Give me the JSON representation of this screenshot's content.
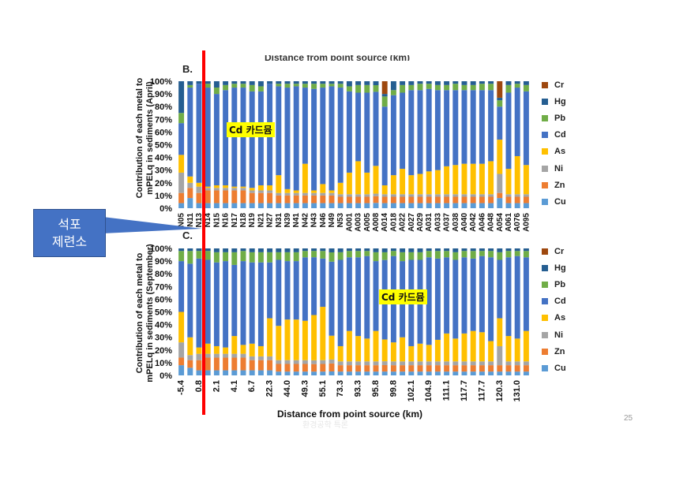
{
  "page_number": "25",
  "top_truncated_label": "Distance from point source (km)",
  "watermark_text": "환경공학 특론",
  "callout": {
    "line1": "석포",
    "line2": "제련소",
    "color": "#4472c4"
  },
  "annotation_color": "#ffff00",
  "line_color": "#ff0000",
  "chart_data": [
    {
      "type": "bar",
      "stacked": true,
      "panel": "B.",
      "ylabel_line1": "Contribution of each metal to",
      "ylabel_line2": "mPELq in sediments (April)",
      "yticks": [
        "0%",
        "10%",
        "20%",
        "30%",
        "40%",
        "50%",
        "60%",
        "70%",
        "80%",
        "90%",
        "100%"
      ],
      "ylim": [
        0,
        100
      ],
      "tick_labels": [
        "N05",
        "N11",
        "N13",
        "N14",
        "N15",
        "N16",
        "N17",
        "N18",
        "N19",
        "N21",
        "N27",
        "N31",
        "N39",
        "N41",
        "N42",
        "N43",
        "N46",
        "N49",
        "N53",
        "A001",
        "A003",
        "A005",
        "A008",
        "A014",
        "A018",
        "A022",
        "A027",
        "A029",
        "A031",
        "A033",
        "A037",
        "A038",
        "A040",
        "A042",
        "A046",
        "A048",
        "A054",
        "A061",
        "A076",
        "A095"
      ],
      "annotation": "Cd 카드뮴",
      "legend": [
        "Cr",
        "Hg",
        "Pb",
        "Cd",
        "As",
        "Ni",
        "Zn",
        "Cu"
      ],
      "colors": {
        "Cu": "#5b9bd5",
        "Zn": "#ed7d31",
        "Ni": "#a5a5a5",
        "As": "#ffc000",
        "Cd": "#4472c4",
        "Pb": "#70ad47",
        "Hg": "#255e91",
        "Cr": "#9e480e"
      },
      "n_bars": 40,
      "series": [
        {
          "name": "Cu",
          "values": [
            4,
            8,
            4,
            4,
            4,
            4,
            4,
            4,
            4,
            4,
            4,
            4,
            4,
            4,
            4,
            4,
            4,
            4,
            4,
            4,
            4,
            4,
            4,
            4,
            4,
            4,
            4,
            4,
            4,
            4,
            4,
            4,
            4,
            4,
            4,
            4,
            8,
            4,
            4,
            4
          ]
        },
        {
          "name": "Zn",
          "values": [
            8,
            8,
            8,
            10,
            10,
            10,
            10,
            10,
            8,
            8,
            8,
            6,
            6,
            6,
            6,
            6,
            6,
            6,
            5,
            5,
            5,
            5,
            5,
            5,
            5,
            5,
            5,
            5,
            5,
            5,
            5,
            5,
            5,
            5,
            5,
            5,
            4,
            5,
            5,
            5
          ]
        },
        {
          "name": "Ni",
          "values": [
            16,
            4,
            5,
            2,
            2,
            2,
            2,
            2,
            2,
            2,
            2,
            2,
            2,
            2,
            2,
            2,
            2,
            2,
            2,
            2,
            2,
            2,
            2,
            2,
            2,
            2,
            2,
            2,
            2,
            2,
            2,
            2,
            2,
            2,
            2,
            2,
            15,
            2,
            2,
            2
          ]
        },
        {
          "name": "As",
          "values": [
            14,
            5,
            3,
            1,
            2,
            2,
            1,
            1,
            2,
            4,
            4,
            14,
            3,
            2,
            23,
            2,
            7,
            2,
            9,
            17,
            26,
            17,
            21,
            7,
            15,
            20,
            15,
            16,
            18,
            19,
            22,
            23,
            24,
            24,
            24,
            26,
            27,
            20,
            30,
            23
          ]
        },
        {
          "name": "Cd",
          "values": [
            25,
            70,
            78,
            78,
            72,
            75,
            78,
            78,
            76,
            74,
            80,
            70,
            80,
            82,
            60,
            80,
            76,
            82,
            75,
            64,
            54,
            63,
            56,
            62,
            63,
            60,
            67,
            66,
            65,
            63,
            60,
            59,
            58,
            58,
            58,
            56,
            26,
            60,
            54,
            58
          ]
        },
        {
          "name": "Pb",
          "values": [
            8,
            2,
            0,
            3,
            5,
            4,
            3,
            3,
            5,
            4,
            0,
            2,
            3,
            2,
            3,
            4,
            3,
            2,
            3,
            4,
            6,
            6,
            5,
            8,
            4,
            6,
            4,
            5,
            4,
            4,
            4,
            5,
            4,
            4,
            5,
            5,
            5,
            6,
            3,
            5
          ]
        },
        {
          "name": "Hg",
          "values": [
            25,
            3,
            2,
            2,
            5,
            3,
            2,
            2,
            3,
            4,
            2,
            2,
            2,
            2,
            2,
            2,
            2,
            2,
            2,
            4,
            3,
            3,
            3,
            2,
            7,
            3,
            3,
            2,
            2,
            3,
            3,
            2,
            3,
            3,
            2,
            2,
            2,
            3,
            2,
            3
          ]
        },
        {
          "name": "Cr",
          "values": [
            0,
            0,
            0,
            0,
            0,
            0,
            0,
            0,
            0,
            0,
            0,
            0,
            0,
            0,
            0,
            0,
            0,
            0,
            0,
            0,
            0,
            0,
            0,
            10,
            0,
            0,
            0,
            0,
            0,
            0,
            0,
            0,
            0,
            0,
            0,
            0,
            13,
            0,
            0,
            0
          ]
        }
      ]
    },
    {
      "type": "bar",
      "stacked": true,
      "panel": "C.",
      "ylabel_line1": "Contribution of each metal to",
      "ylabel_line2": "mPELq in sediments (September)",
      "yticks": [
        "0%",
        "10%",
        "20%",
        "30%",
        "40%",
        "50%",
        "60%",
        "70%",
        "80%",
        "90%",
        "100%"
      ],
      "ylim": [
        0,
        100
      ],
      "tick_labels": [
        "-5.4",
        "0.8",
        "2.1",
        "4.1",
        "6.7",
        "22.3",
        "44.0",
        "49.3",
        "55.1",
        "73.3",
        "93.3",
        "95.8",
        "99.8",
        "102.1",
        "104.9",
        "111.1",
        "117.7",
        "117.7",
        "120.3",
        "131.0"
      ],
      "xlabel": "Distance from point source (km)",
      "annotation": "Cd 카드뮴",
      "legend": [
        "Cr",
        "Hg",
        "Pb",
        "Cd",
        "As",
        "Ni",
        "Zn",
        "Cu"
      ],
      "colors": {
        "Cu": "#5b9bd5",
        "Zn": "#ed7d31",
        "Ni": "#a5a5a5",
        "As": "#ffc000",
        "Cd": "#4472c4",
        "Pb": "#70ad47",
        "Hg": "#255e91",
        "Cr": "#9e480e"
      },
      "n_bars": 40,
      "series": [
        {
          "name": "Cu",
          "values": [
            8,
            6,
            4,
            4,
            4,
            4,
            4,
            4,
            4,
            4,
            4,
            3,
            3,
            3,
            3,
            3,
            3,
            3,
            3,
            3,
            3,
            3,
            3,
            3,
            3,
            3,
            3,
            3,
            3,
            3,
            3,
            3,
            3,
            3,
            3,
            3,
            3,
            3,
            3,
            3
          ]
        },
        {
          "name": "Zn",
          "values": [
            6,
            6,
            8,
            10,
            10,
            10,
            10,
            10,
            8,
            8,
            8,
            6,
            6,
            6,
            6,
            6,
            6,
            6,
            5,
            5,
            5,
            5,
            5,
            5,
            5,
            5,
            5,
            5,
            5,
            5,
            5,
            5,
            5,
            5,
            5,
            5,
            5,
            5,
            5,
            5
          ]
        },
        {
          "name": "Ni",
          "values": [
            12,
            4,
            5,
            3,
            3,
            3,
            3,
            3,
            3,
            3,
            3,
            3,
            3,
            3,
            3,
            3,
            3,
            3,
            3,
            3,
            3,
            3,
            3,
            3,
            3,
            3,
            3,
            3,
            3,
            3,
            3,
            3,
            3,
            3,
            3,
            3,
            15,
            3,
            3,
            3
          ]
        },
        {
          "name": "As",
          "values": [
            24,
            14,
            5,
            8,
            6,
            5,
            14,
            7,
            10,
            8,
            30,
            27,
            32,
            32,
            31,
            36,
            42,
            18,
            12,
            24,
            20,
            18,
            24,
            17,
            15,
            19,
            12,
            14,
            13,
            17,
            22,
            18,
            22,
            24,
            23,
            16,
            22,
            20,
            18,
            24
          ]
        },
        {
          "name": "Cd",
          "values": [
            40,
            58,
            70,
            66,
            66,
            68,
            56,
            66,
            64,
            66,
            44,
            52,
            46,
            46,
            50,
            46,
            38,
            56,
            68,
            58,
            62,
            65,
            55,
            62,
            68,
            60,
            68,
            66,
            69,
            64,
            60,
            62,
            60,
            57,
            60,
            66,
            46,
            62,
            65,
            58
          ]
        },
        {
          "name": "Pb",
          "values": [
            8,
            10,
            6,
            7,
            8,
            7,
            10,
            8,
            8,
            8,
            8,
            6,
            7,
            7,
            5,
            5,
            6,
            7,
            6,
            5,
            5,
            4,
            7,
            6,
            4,
            7,
            6,
            6,
            5,
            6,
            5,
            6,
            5,
            6,
            4,
            5,
            6,
            5,
            4,
            5
          ]
        },
        {
          "name": "Hg",
          "values": [
            2,
            2,
            2,
            2,
            3,
            3,
            3,
            2,
            3,
            3,
            3,
            3,
            3,
            3,
            2,
            2,
            2,
            3,
            3,
            2,
            2,
            2,
            3,
            3,
            2,
            3,
            3,
            3,
            2,
            2,
            2,
            3,
            2,
            2,
            2,
            2,
            3,
            2,
            2,
            2
          ]
        },
        {
          "name": "Cr",
          "values": [
            0,
            0,
            0,
            0,
            0,
            0,
            0,
            0,
            0,
            0,
            0,
            0,
            0,
            0,
            0,
            0,
            0,
            0,
            0,
            0,
            0,
            0,
            0,
            0,
            0,
            0,
            0,
            0,
            0,
            0,
            0,
            0,
            0,
            0,
            0,
            0,
            0,
            0,
            0,
            0
          ]
        }
      ]
    }
  ]
}
